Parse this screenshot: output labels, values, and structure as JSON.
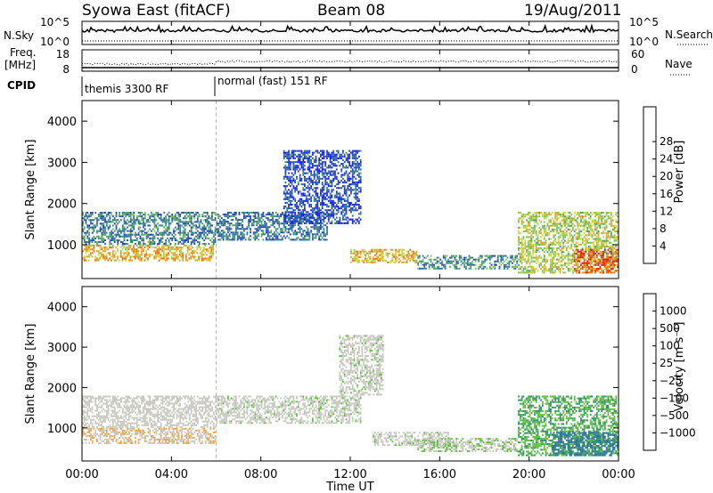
{
  "header": {
    "radar": "Syowa East (fitACF)",
    "beam": "Beam 08",
    "date": "19/Aug/2011"
  },
  "strip_panels": {
    "nsky_label": "N.Sky",
    "nsearch_label": "N.Search",
    "freq_label_top": "Freq.",
    "freq_label_unit": "[MHz]",
    "nave_label": "Nave",
    "cpid_label": "CPID",
    "nsky_ticks": [
      "10^5",
      "10^0"
    ],
    "nsearch_ticks": [
      "10^5",
      "10^0"
    ],
    "freq_ticks": [
      "18",
      "8"
    ],
    "nave_ticks": [
      "60",
      "0"
    ],
    "cpid_segments": [
      {
        "label": "themis 3300 RF",
        "start_hour": 0
      },
      {
        "label": "normal (fast) 151 RF",
        "start_hour": 6
      }
    ]
  },
  "axes": {
    "ylabel": "Slant Range [km]",
    "xlabel": "Time UT",
    "y_ticks": [
      "1000",
      "2000",
      "3000",
      "4000"
    ],
    "x_ticks": [
      "00:00",
      "04:00",
      "08:00",
      "12:00",
      "16:00",
      "20:00",
      "00:00"
    ]
  },
  "colorbars": {
    "power": {
      "label": "Power [dB]",
      "ticks": [
        "4",
        "8",
        "12",
        "16",
        "20",
        "24",
        "28"
      ],
      "colors": [
        "#1a1aff",
        "#1f3fbf",
        "#2f6f9f",
        "#4aa06a",
        "#7fc25a",
        "#c8d840",
        "#f0a020",
        "#f06a10",
        "#e82010"
      ]
    },
    "velocity": {
      "label": "Velocity [m s⁻¹]",
      "ticks": [
        "1000",
        "500",
        "100",
        "25",
        "−25",
        "−100",
        "−500",
        "−1000"
      ],
      "colors": [
        "#2a3fbf",
        "#3070a8",
        "#2f8f6f",
        "#5fbf3f",
        "#c8c8c0",
        "#c8c8c0",
        "#f0a040",
        "#f07020",
        "#e83010"
      ]
    }
  },
  "chart_data": [
    {
      "type": "heatmap",
      "title": "Power [dB]",
      "xlabel": "Time UT",
      "ylabel": "Slant Range [km]",
      "xlim_hours": [
        0,
        24
      ],
      "ylim_km": [
        180,
        4500
      ],
      "colorbar_range_db": [
        0,
        32
      ],
      "regions": [
        {
          "t0": 0.0,
          "t1": 5.9,
          "r0": 600,
          "r1": 1000,
          "level": 22
        },
        {
          "t0": 0.0,
          "t1": 6.0,
          "r0": 1000,
          "r1": 1800,
          "level": 10
        },
        {
          "t0": 6.0,
          "t1": 11.0,
          "r0": 1100,
          "r1": 1800,
          "level": 9
        },
        {
          "t0": 9.0,
          "t1": 12.5,
          "r0": 1500,
          "r1": 3300,
          "level": 6
        },
        {
          "t0": 12.0,
          "t1": 15.0,
          "r0": 550,
          "r1": 900,
          "level": 22
        },
        {
          "t0": 15.0,
          "t1": 19.5,
          "r0": 400,
          "r1": 750,
          "level": 11
        },
        {
          "t0": 19.5,
          "t1": 24.0,
          "r0": 300,
          "r1": 1800,
          "level": 18
        },
        {
          "t0": 22.0,
          "t1": 24.0,
          "r0": 300,
          "r1": 900,
          "level": 28
        }
      ]
    },
    {
      "type": "heatmap",
      "title": "Velocity [m s⁻¹]",
      "xlabel": "Time UT",
      "ylabel": "Slant Range [km]",
      "xlim_hours": [
        0,
        24
      ],
      "ylim_km": [
        180,
        4500
      ],
      "colorbar_range_ms": [
        -1000,
        1000
      ],
      "regions": [
        {
          "t0": 0.0,
          "t1": 6.0,
          "r0": 600,
          "r1": 1000,
          "level": -300
        },
        {
          "t0": 0.0,
          "t1": 6.0,
          "r0": 1000,
          "r1": 1800,
          "level": -150
        },
        {
          "t0": 6.0,
          "t1": 12.5,
          "r0": 1100,
          "r1": 1800,
          "level": 0
        },
        {
          "t0": 11.5,
          "t1": 13.5,
          "r0": 1800,
          "r1": 3300,
          "level": 0
        },
        {
          "t0": 13.0,
          "t1": 16.5,
          "r0": 550,
          "r1": 900,
          "level": 0
        },
        {
          "t0": 15.0,
          "t1": 19.5,
          "r0": 400,
          "r1": 750,
          "level": 80
        },
        {
          "t0": 19.5,
          "t1": 24.0,
          "r0": 300,
          "r1": 1800,
          "level": 300
        },
        {
          "t0": 21.0,
          "t1": 24.0,
          "r0": 300,
          "r1": 900,
          "level": 600
        }
      ]
    }
  ]
}
